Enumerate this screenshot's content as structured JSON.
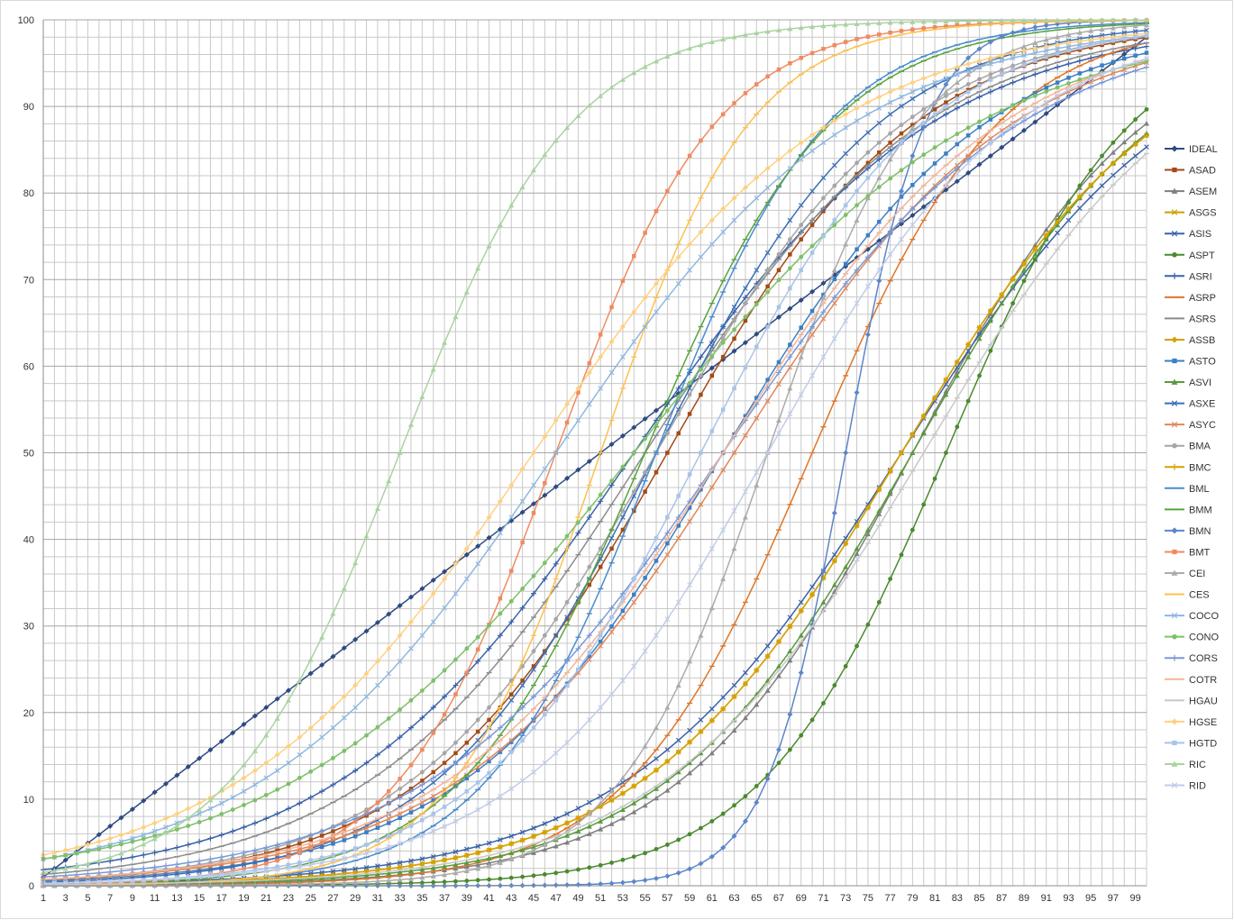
{
  "chart_data": {
    "type": "line",
    "title": "",
    "xlabel": "",
    "ylabel": "",
    "x": [
      1,
      2,
      3,
      4,
      5,
      6,
      7,
      8,
      9,
      10,
      11,
      12,
      13,
      14,
      15,
      16,
      17,
      18,
      19,
      20,
      21,
      22,
      23,
      24,
      25,
      26,
      27,
      28,
      29,
      30,
      31,
      32,
      33,
      34,
      35,
      36,
      37,
      38,
      39,
      40,
      41,
      42,
      43,
      44,
      45,
      46,
      47,
      48,
      49,
      50,
      51,
      52,
      53,
      54,
      55,
      56,
      57,
      58,
      59,
      60,
      61,
      62,
      63,
      64,
      65,
      66,
      67,
      68,
      69,
      70,
      71,
      72,
      73,
      74,
      75,
      76,
      77,
      78,
      79,
      80,
      81,
      82,
      83,
      84,
      85,
      86,
      87,
      88,
      89,
      90,
      91,
      92,
      93,
      94,
      95,
      96,
      97,
      98,
      99,
      100
    ],
    "xlim": [
      1,
      100
    ],
    "ylim": [
      0,
      100
    ],
    "x_tick_labels": [
      "1",
      "3",
      "5",
      "7",
      "9",
      "11",
      "13",
      "15",
      "17",
      "19",
      "21",
      "23",
      "25",
      "27",
      "29",
      "31",
      "33",
      "35",
      "37",
      "39",
      "41",
      "43",
      "45",
      "47",
      "49",
      "51",
      "53",
      "55",
      "57",
      "59",
      "61",
      "63",
      "65",
      "67",
      "69",
      "71",
      "73",
      "75",
      "77",
      "79",
      "81",
      "83",
      "85",
      "87",
      "89",
      "91",
      "93",
      "95",
      "97",
      "99"
    ],
    "y_tick_labels": [
      "0",
      "10",
      "20",
      "30",
      "40",
      "50",
      "60",
      "70",
      "80",
      "90",
      "100"
    ],
    "grid": true,
    "legend_position": "right",
    "series": [
      {
        "name": "IDEAL",
        "color": "#2e4a80",
        "marker": "diamond",
        "curve": {
          "kind": "linear",
          "start": 1,
          "end": 98
        }
      },
      {
        "name": "ASAD",
        "color": "#a44b16",
        "marker": "square",
        "curve": {
          "kind": "logistic",
          "mid": 57,
          "k": 0.09,
          "lo": 0,
          "hi": 100
        }
      },
      {
        "name": "ASEM",
        "color": "#7f7f7f",
        "marker": "triangle",
        "curve": {
          "kind": "logistic",
          "mid": 79,
          "k": 0.095,
          "lo": 0,
          "hi": 100
        }
      },
      {
        "name": "ASGS",
        "color": "#c8a200",
        "marker": "x",
        "curve": {
          "kind": "logistic",
          "mid": 78,
          "k": 0.085,
          "lo": 0,
          "hi": 100
        }
      },
      {
        "name": "ASIS",
        "color": "#3a62a8",
        "marker": "x",
        "curve": {
          "kind": "logistic",
          "mid": 78,
          "k": 0.08,
          "lo": 0,
          "hi": 100
        }
      },
      {
        "name": "ASPT",
        "color": "#4a8a2e",
        "marker": "circle",
        "curve": {
          "kind": "logistic",
          "mid": 82,
          "k": 0.12,
          "lo": 0,
          "hi": 100
        }
      },
      {
        "name": "ASRI",
        "color": "#3a62a8",
        "marker": "plus",
        "curve": {
          "kind": "logistic",
          "mid": 54,
          "k": 0.075,
          "lo": 0,
          "hi": 100
        }
      },
      {
        "name": "ASRP",
        "color": "#e07426",
        "marker": "dash",
        "curve": {
          "kind": "logistic",
          "mid": 70,
          "k": 0.12,
          "lo": 0,
          "hi": 100
        }
      },
      {
        "name": "ASRS",
        "color": "#8c8c8c",
        "marker": "dash",
        "curve": {
          "kind": "logistic",
          "mid": 55,
          "k": 0.08,
          "lo": 0,
          "hi": 100
        }
      },
      {
        "name": "ASSB",
        "color": "#d6a100",
        "marker": "diamond",
        "curve": {
          "kind": "logistic",
          "mid": 78,
          "k": 0.085,
          "lo": 0,
          "hi": 100
        }
      },
      {
        "name": "ASTO",
        "color": "#3b7fc4",
        "marker": "square",
        "curve": {
          "kind": "logistic",
          "mid": 62,
          "k": 0.085,
          "lo": 0,
          "hi": 100
        }
      },
      {
        "name": "ASVI",
        "color": "#5a9a3e",
        "marker": "triangle",
        "curve": {
          "kind": "logistic",
          "mid": 79,
          "k": 0.09,
          "lo": 0,
          "hi": 100
        }
      },
      {
        "name": "ASXE",
        "color": "#3b6fb5",
        "marker": "x",
        "curve": {
          "kind": "logistic",
          "mid": 56,
          "k": 0.1,
          "lo": 0,
          "hi": 100
        }
      },
      {
        "name": "ASYC",
        "color": "#e0875a",
        "marker": "x",
        "curve": {
          "kind": "logistic",
          "mid": 63,
          "k": 0.08,
          "lo": 0,
          "hi": 100
        }
      },
      {
        "name": "BMA",
        "color": "#a6a6a6",
        "marker": "circle",
        "curve": {
          "kind": "logistic",
          "mid": 56,
          "k": 0.09,
          "lo": 0,
          "hi": 100
        }
      },
      {
        "name": "BMC",
        "color": "#d6a100",
        "marker": "plus",
        "curve": {
          "kind": "logistic",
          "mid": 78,
          "k": 0.085,
          "lo": 0,
          "hi": 100
        }
      },
      {
        "name": "BML",
        "color": "#4a8ccf",
        "marker": "dash",
        "curve": {
          "kind": "logistic",
          "mid": 56,
          "k": 0.13,
          "lo": 0,
          "hi": 100
        }
      },
      {
        "name": "BMM",
        "color": "#5aa33e",
        "marker": "dash",
        "curve": {
          "kind": "logistic",
          "mid": 55,
          "k": 0.12,
          "lo": 0,
          "hi": 100
        }
      },
      {
        "name": "BMN",
        "color": "#5b86c9",
        "marker": "diamond",
        "curve": {
          "kind": "logistic",
          "mid": 73,
          "k": 0.28,
          "lo": 0,
          "hi": 100
        }
      },
      {
        "name": "BMT",
        "color": "#f08a60",
        "marker": "square",
        "curve": {
          "kind": "logistic",
          "mid": 47,
          "k": 0.14,
          "lo": 0,
          "hi": 100
        }
      },
      {
        "name": "CEI",
        "color": "#ababab",
        "marker": "triangle",
        "curve": {
          "kind": "logistic",
          "mid": 66,
          "k": 0.15,
          "lo": 0,
          "hi": 100
        }
      },
      {
        "name": "CES",
        "color": "#ffc04d",
        "marker": "dash",
        "curve": {
          "kind": "logistic",
          "mid": 51,
          "k": 0.15,
          "lo": 0,
          "hi": 100
        }
      },
      {
        "name": "COCO",
        "color": "#8fb7e0",
        "marker": "x",
        "curve": {
          "kind": "logistic",
          "mid": 47,
          "k": 0.075,
          "lo": 0,
          "hi": 100
        }
      },
      {
        "name": "CONO",
        "color": "#7fc06a",
        "marker": "circle",
        "curve": {
          "kind": "logistic",
          "mid": 54,
          "k": 0.065,
          "lo": 0,
          "hi": 100
        }
      },
      {
        "name": "CORS",
        "color": "#7a99d6",
        "marker": "plus",
        "curve": {
          "kind": "logistic",
          "mid": 62,
          "k": 0.075,
          "lo": 0,
          "hi": 100
        }
      },
      {
        "name": "COTR",
        "color": "#f2b599",
        "marker": "dash",
        "curve": {
          "kind": "logistic",
          "mid": 62,
          "k": 0.08,
          "lo": 0,
          "hi": 100
        }
      },
      {
        "name": "HGAU",
        "color": "#c8c8c8",
        "marker": "dash",
        "curve": {
          "kind": "logistic",
          "mid": 80,
          "k": 0.085,
          "lo": 0,
          "hi": 100
        }
      },
      {
        "name": "HGSE",
        "color": "#ffd080",
        "marker": "diamond",
        "curve": {
          "kind": "logistic",
          "mid": 45,
          "k": 0.075,
          "lo": 0,
          "hi": 100
        }
      },
      {
        "name": "HGTD",
        "color": "#a8c4ea",
        "marker": "square",
        "curve": {
          "kind": "logistic",
          "mid": 60,
          "k": 0.1,
          "lo": 0,
          "hi": 100
        }
      },
      {
        "name": "RIC",
        "color": "#a9d3a0",
        "marker": "triangle",
        "curve": {
          "kind": "logistic",
          "mid": 33,
          "k": 0.13,
          "lo": 0,
          "hi": 100
        }
      },
      {
        "name": "RID",
        "color": "#c0cce8",
        "marker": "x",
        "curve": {
          "kind": "logistic",
          "mid": 66,
          "k": 0.09,
          "lo": 0,
          "hi": 100
        }
      }
    ]
  }
}
